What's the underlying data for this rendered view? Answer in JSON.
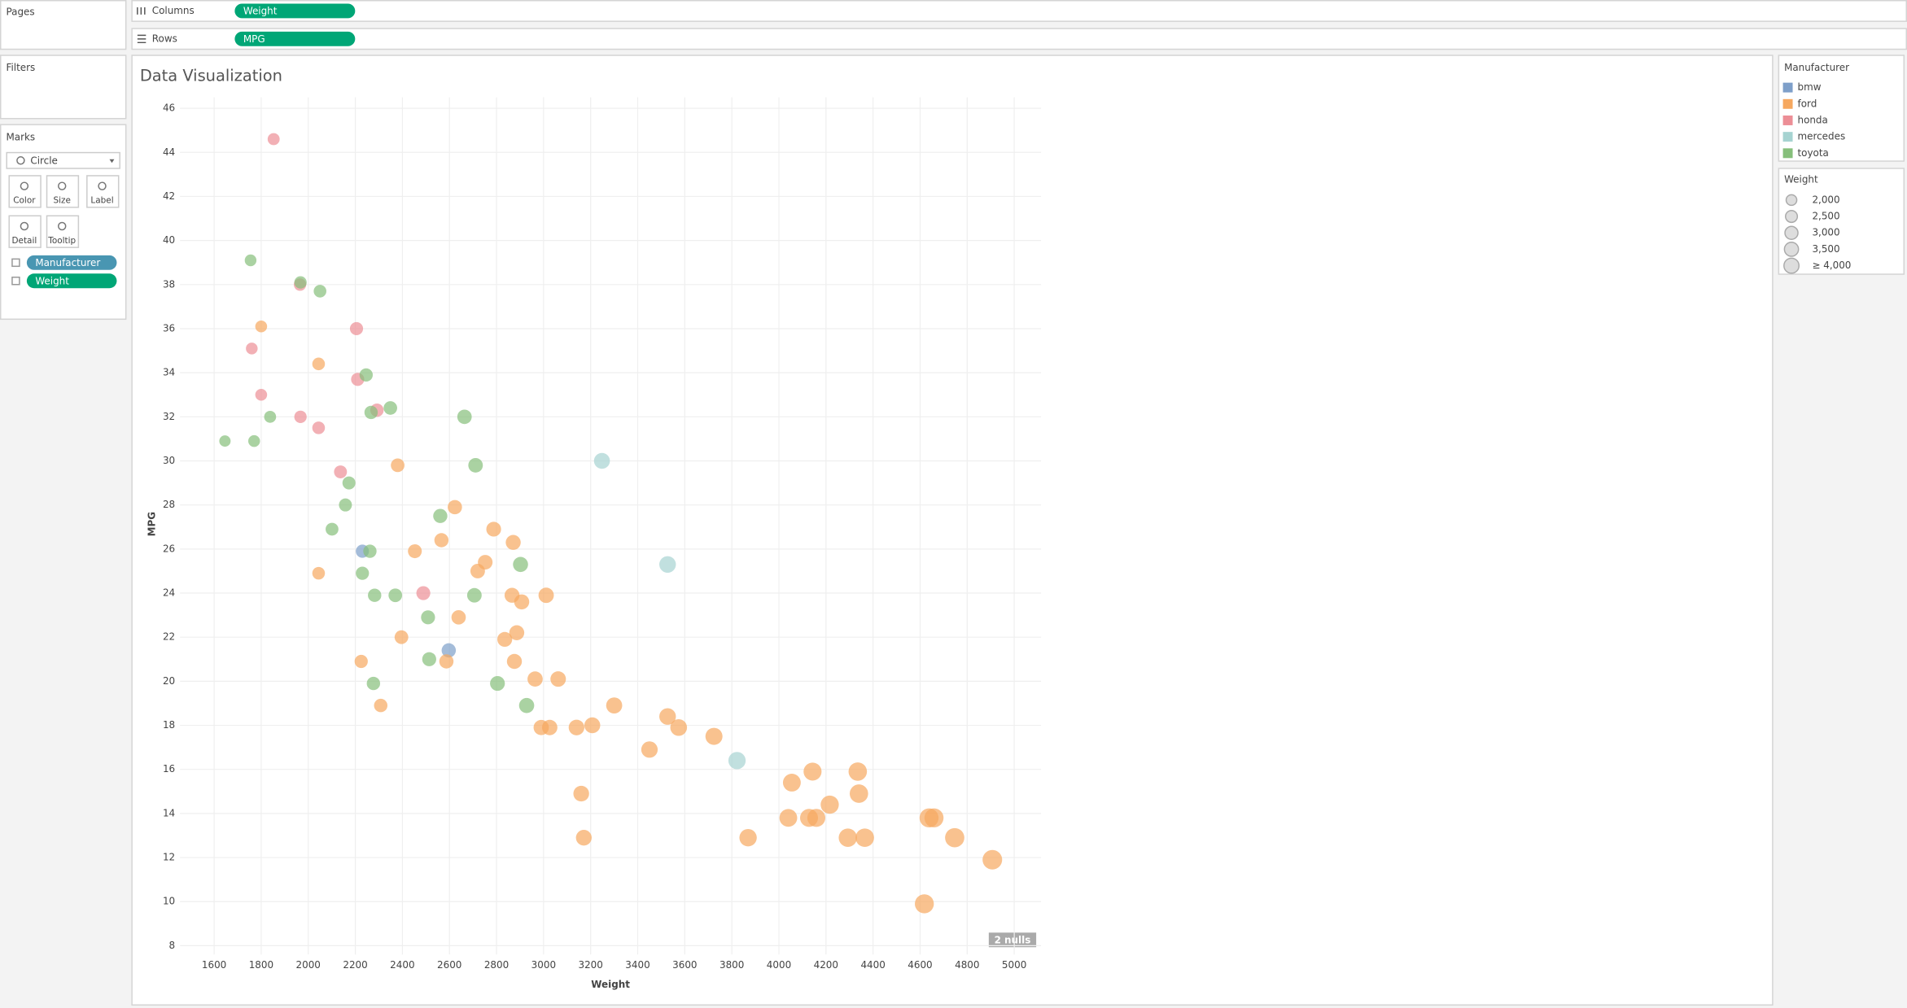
{
  "ui": {
    "pages": "Pages",
    "columns_label": "Columns",
    "columns_pill": "Weight",
    "rows_label": "Rows",
    "rows_pill": "MPG",
    "filters": "Filters",
    "marks": "Marks",
    "mark_type": "Circle",
    "mark_buttons": [
      "Color",
      "Size",
      "Label",
      "Detail",
      "Tooltip"
    ],
    "marks_pills": [
      "Manufacturer",
      "Weight"
    ],
    "color_legend_title": "Manufacturer",
    "size_legend_title": "Weight",
    "nulls_badge": "2 nulls"
  },
  "chart_data": {
    "type": "scatter",
    "title": "Data Visualization",
    "x_label": "Weight",
    "y_label": "MPG",
    "xlim": [
      1455,
      5114
    ],
    "ylim": [
      7.6,
      46.5
    ],
    "xticks": [
      1600,
      1800,
      2000,
      2200,
      2400,
      2600,
      2800,
      3000,
      3200,
      3400,
      3600,
      3800,
      4000,
      4200,
      4400,
      4600,
      4800,
      5000
    ],
    "yticks": [
      8,
      10,
      12,
      14,
      16,
      18,
      20,
      22,
      24,
      26,
      28,
      30,
      32,
      34,
      36,
      38,
      40,
      42,
      44,
      46
    ],
    "grid": true,
    "size_ticks": [
      {
        "value": 2000,
        "label": "2,000"
      },
      {
        "value": 2500,
        "label": "2,500"
      },
      {
        "value": 3000,
        "label": "3,000"
      },
      {
        "value": 3500,
        "label": "3,500"
      },
      {
        "value": 4000,
        "label": "≥ 4,000"
      }
    ],
    "series": [
      {
        "name": "bmw",
        "color": "#7e9fc9",
        "x": [
          2230,
          2597
        ],
        "values": [
          25.9,
          21.4
        ]
      },
      {
        "name": "ford",
        "color": "#f6a85f",
        "x": [
          1800,
          2044,
          2380,
          2623,
          2788,
          2871,
          2453,
          2566,
          2752,
          2720,
          2044,
          2866,
          3011,
          2907,
          2639,
          2886,
          2835,
          2396,
          2225,
          2587,
          2876,
          2964,
          3062,
          2308,
          3300,
          3527,
          2990,
          3026,
          3140,
          3207,
          3574,
          3724,
          3450,
          3160,
          3171,
          3869,
          4055,
          4143,
          4335,
          4340,
          4216,
          4040,
          4128,
          4159,
          4293,
          4365,
          4638,
          4659,
          4747,
          4907,
          4618
        ],
        "values": [
          36.1,
          34.4,
          29.8,
          27.9,
          26.9,
          26.3,
          25.9,
          26.4,
          25.4,
          25.0,
          24.9,
          23.9,
          23.9,
          23.6,
          22.9,
          22.2,
          21.9,
          22,
          20.9,
          20.9,
          20.9,
          20.1,
          20.1,
          18.9,
          18.9,
          18.4,
          17.9,
          17.9,
          17.9,
          18.0,
          17.9,
          17.5,
          16.9,
          14.9,
          12.9,
          12.9,
          15.4,
          15.9,
          15.9,
          14.9,
          14.4,
          13.8,
          13.8,
          13.8,
          12.9,
          12.9,
          13.8,
          13.8,
          12.9,
          11.9,
          9.9
        ]
      },
      {
        "name": "honda",
        "color": "#ec8e96",
        "x": [
          1853,
          1965,
          2205,
          1760,
          1800,
          2210,
          2292,
          1967,
          2044,
          2137,
          2489
        ],
        "values": [
          44.6,
          38,
          36,
          35.1,
          33,
          33.7,
          32.3,
          32,
          31.5,
          29.5,
          24
        ]
      },
      {
        "name": "mercedes",
        "color": "#a6d3d1",
        "x": [
          3248,
          3527,
          3822
        ],
        "values": [
          30,
          25.3,
          16.4
        ]
      },
      {
        "name": "toyota",
        "color": "#86bf7b",
        "x": [
          1755,
          2050,
          1967,
          2246,
          2349,
          2267,
          2664,
          1838,
          1646,
          1770,
          2711,
          2173,
          2158,
          2561,
          2101,
          2262,
          2902,
          2230,
          2282,
          2370,
          2706,
          2509,
          2514,
          2277,
          2804,
          2928
        ],
        "values": [
          39.1,
          37.7,
          38.1,
          33.9,
          32.4,
          32.2,
          32,
          32,
          30.9,
          30.9,
          29.8,
          29,
          28,
          27.5,
          26.9,
          25.9,
          25.3,
          24.9,
          23.9,
          23.9,
          23.9,
          22.9,
          21,
          19.9,
          19.9,
          18.9
        ]
      }
    ]
  }
}
